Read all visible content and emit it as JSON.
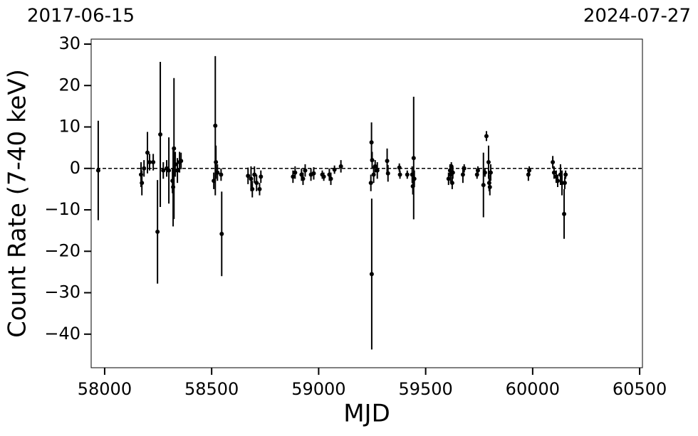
{
  "chart_data": {
    "type": "errorbar-scatter",
    "xlabel": "MJD",
    "ylabel": "Count Rate (7-40 keV)",
    "annotations": [
      "2017-06-15",
      "2024-07-27"
    ],
    "color": "#000000",
    "hline": 0,
    "xlim": [
      57937,
      60513
    ],
    "ylim": [
      -48.1,
      31.2
    ],
    "xticks": [
      58000,
      58500,
      59000,
      59500,
      60000,
      60500
    ],
    "yticks": [
      {
        "value": -40,
        "label": "−40"
      },
      {
        "value": -30,
        "label": "−30"
      },
      {
        "value": -20,
        "label": "−20"
      },
      {
        "value": -10,
        "label": "−10"
      },
      0,
      10,
      20,
      30
    ],
    "x": [
      57970,
      58170,
      58174,
      58184,
      58200,
      58210,
      58227,
      58247,
      58260,
      58274,
      58290,
      58300,
      58317,
      58320,
      58324,
      58330,
      58340,
      58350,
      58357,
      58510,
      58517,
      58520,
      58527,
      58544,
      58547,
      58670,
      58684,
      58690,
      58700,
      58710,
      58724,
      58730,
      58880,
      58890,
      58920,
      58927,
      58937,
      58964,
      58977,
      59017,
      59024,
      59050,
      59057,
      59074,
      59104,
      59244,
      59247,
      59248,
      59250,
      59257,
      59264,
      59274,
      59320,
      59324,
      59377,
      59380,
      59414,
      59437,
      59440,
      59444,
      59447,
      59607,
      59614,
      59617,
      59620,
      59624,
      59627,
      59674,
      59680,
      59740,
      59744,
      59770,
      59777,
      59784,
      59794,
      59797,
      59800,
      59804,
      59980,
      59984,
      60094,
      60100,
      60110,
      60117,
      60130,
      60137,
      60147,
      60150,
      60154
    ],
    "values": [
      -0.5,
      -1.5,
      -3.5,
      0,
      3.8,
      1.5,
      1.5,
      -15.3,
      8.2,
      -0.5,
      0,
      -0.5,
      -3,
      -4.5,
      4.8,
      1,
      -0.5,
      1.5,
      1.8,
      -3,
      10.3,
      1.5,
      -1,
      -1.5,
      -15.8,
      -1.8,
      -2.5,
      -5,
      -1.5,
      -3.5,
      -5,
      -2,
      -2,
      -1,
      -1.5,
      -2.5,
      -0.5,
      -1.5,
      -1.2,
      -1.5,
      -2,
      -1.5,
      -2.5,
      -0.3,
      0.5,
      -3.5,
      6.3,
      -25.5,
      2,
      -1.5,
      0.5,
      -0.5,
      1.8,
      -1.2,
      0.2,
      -1.5,
      -1.5,
      -1.5,
      -4.3,
      2.5,
      -2.5,
      -2.5,
      -0.5,
      -1.5,
      0.5,
      -3.5,
      -1,
      -1.5,
      0,
      -1.5,
      -0.5,
      -4,
      -1,
      7.8,
      1.5,
      -3.5,
      -4.5,
      -1,
      -1.5,
      -0.5,
      1.5,
      -1,
      -2,
      -3,
      -1.5,
      -3.5,
      -11,
      -3.5,
      -1.5
    ],
    "errors": [
      12,
      3,
      3,
      2,
      5,
      2,
      2,
      12.5,
      17.5,
      2,
      2,
      8,
      3,
      9.5,
      17,
      3,
      3,
      2.5,
      2,
      2,
      16.8,
      4,
      2,
      1.5,
      10.2,
      2,
      3,
      2,
      2,
      2,
      1.5,
      1.5,
      1.5,
      1.5,
      1.5,
      1.5,
      1.5,
      1.5,
      1.5,
      1,
      1,
      1.5,
      1.5,
      1,
      1.5,
      2,
      4.8,
      18.2,
      2,
      2,
      1.5,
      2,
      3,
      2,
      1,
      1,
      1,
      2,
      2,
      14.8,
      2,
      1.5,
      1.5,
      2,
      1,
      1.5,
      1.5,
      2,
      1,
      1,
      1,
      7.8,
      1,
      1.2,
      4,
      2,
      2,
      2,
      1.5,
      1,
      1.5,
      1.5,
      1.5,
      1.5,
      2.5,
      3,
      6,
      1.5,
      1
    ]
  }
}
